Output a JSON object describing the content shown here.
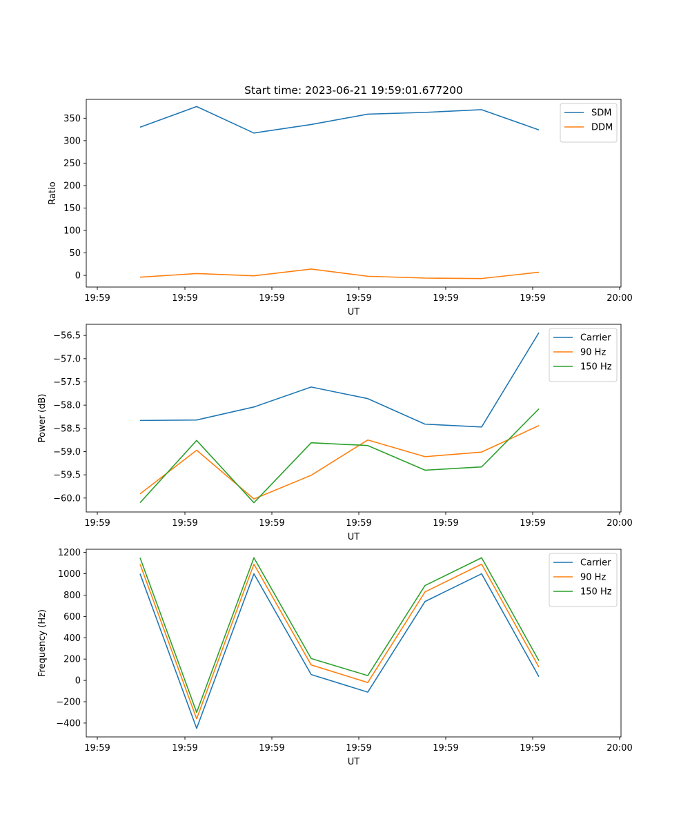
{
  "colors": {
    "blue": "#1f77b4",
    "orange": "#ff7f0e",
    "green": "#2ca02c"
  },
  "chart_data": [
    {
      "type": "line",
      "title": "Start time: 2023-06-21 19:59:01.677200",
      "xlabel": "UT",
      "ylabel": "Ratio",
      "x_tick_labels": [
        "19:59",
        "19:59",
        "19:59",
        "19:59",
        "19:59",
        "19:59",
        "20:00"
      ],
      "ylim": [
        -26,
        392
      ],
      "y_ticks": [
        0,
        50,
        100,
        150,
        200,
        250,
        300,
        350
      ],
      "legend_position": "top-right",
      "series": [
        {
          "name": "SDM",
          "color": "#1f77b4",
          "values": [
            330,
            376,
            317,
            336,
            359,
            363,
            369,
            324
          ]
        },
        {
          "name": "DDM",
          "color": "#ff7f0e",
          "values": [
            -4,
            4,
            -1,
            14,
            -2,
            -6,
            -7,
            7
          ]
        }
      ]
    },
    {
      "type": "line",
      "title": "",
      "xlabel": "UT",
      "ylabel": "Power (dB)",
      "x_tick_labels": [
        "19:59",
        "19:59",
        "19:59",
        "19:59",
        "19:59",
        "19:59",
        "20:00"
      ],
      "ylim": [
        -60.3,
        -56.26
      ],
      "y_ticks": [
        -60.0,
        -59.5,
        -59.0,
        -58.5,
        -58.0,
        -57.5,
        -57.0,
        -56.5
      ],
      "y_tick_labels": [
        "−60.0",
        "−59.5",
        "−59.0",
        "−58.5",
        "−58.0",
        "−57.5",
        "−57.0",
        "−56.5"
      ],
      "legend_position": "top-right",
      "series": [
        {
          "name": "Carrier",
          "color": "#1f77b4",
          "values": [
            -58.33,
            -58.32,
            -58.04,
            -57.61,
            -57.86,
            -58.41,
            -58.47,
            -56.44
          ]
        },
        {
          "name": "90 Hz",
          "color": "#ff7f0e",
          "values": [
            -59.91,
            -58.97,
            -60.02,
            -59.51,
            -58.75,
            -59.11,
            -59.01,
            -58.44
          ]
        },
        {
          "name": "150 Hz",
          "color": "#2ca02c",
          "values": [
            -60.1,
            -58.76,
            -60.1,
            -58.81,
            -58.87,
            -59.4,
            -59.33,
            -58.08
          ]
        }
      ]
    },
    {
      "type": "line",
      "title": "",
      "xlabel": "UT",
      "ylabel": "Frequency (Hz)",
      "x_tick_labels": [
        "19:59",
        "19:59",
        "19:59",
        "19:59",
        "19:59",
        "19:59",
        "20:00"
      ],
      "ylim": [
        -530,
        1230
      ],
      "y_ticks": [
        -400,
        -200,
        0,
        200,
        400,
        600,
        800,
        1000,
        1200
      ],
      "y_tick_labels": [
        "−400",
        "−200",
        "0",
        "200",
        "400",
        "600",
        "800",
        "1000",
        "1200"
      ],
      "legend_position": "top-right",
      "series": [
        {
          "name": "Carrier",
          "color": "#1f77b4",
          "values": [
            1000,
            -450,
            1000,
            55,
            -110,
            740,
            1000,
            35
          ]
        },
        {
          "name": "90 Hz",
          "color": "#ff7f0e",
          "values": [
            1090,
            -360,
            1090,
            145,
            -20,
            830,
            1090,
            125
          ]
        },
        {
          "name": "150 Hz",
          "color": "#2ca02c",
          "values": [
            1150,
            -300,
            1150,
            205,
            45,
            890,
            1150,
            185
          ]
        }
      ]
    }
  ]
}
